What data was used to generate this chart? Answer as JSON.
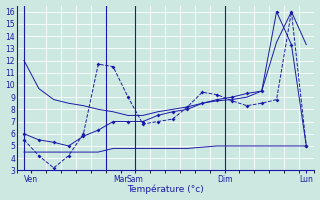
{
  "background_color": "#cce8e0",
  "grid_color": "#b0d8d0",
  "line_color": "#1a1aaa",
  "xlabel": "Température (°c)",
  "ylim": [
    3,
    16.5
  ],
  "yticks": [
    3,
    4,
    5,
    6,
    7,
    8,
    9,
    10,
    11,
    12,
    13,
    14,
    15,
    16
  ],
  "xlim": [
    0,
    19
  ],
  "vline_positions": [
    0,
    5.5,
    7.5,
    13.5
  ],
  "xtick_positions": [
    0.5,
    6.5,
    7.5,
    13.5,
    19
  ],
  "xtick_labels": [
    "Ven",
    "Mar",
    "Sam",
    "Dim",
    "Lun"
  ],
  "s1_x": [
    0,
    1,
    2,
    3,
    4,
    5,
    6,
    7,
    8,
    9,
    10,
    11,
    12,
    13,
    14,
    15,
    16,
    17,
    18,
    19
  ],
  "s1_y": [
    12.0,
    9.7,
    8.8,
    8.5,
    8.3,
    8.0,
    7.8,
    7.5,
    7.5,
    7.8,
    8.0,
    8.2,
    8.5,
    8.7,
    8.8,
    9.0,
    9.5,
    13.5,
    16.0,
    13.3
  ],
  "s2_x": [
    0,
    1,
    2,
    3,
    4,
    5,
    6,
    7,
    8,
    9,
    10,
    11,
    12,
    13,
    14,
    15,
    16,
    17,
    18,
    19
  ],
  "s2_y": [
    5.5,
    4.2,
    3.2,
    4.2,
    6.0,
    11.7,
    11.5,
    9.0,
    6.8,
    7.0,
    7.2,
    8.2,
    9.4,
    9.2,
    8.7,
    8.3,
    8.5,
    8.8,
    16.0,
    5.0
  ],
  "s3_x": [
    0,
    1,
    2,
    3,
    4,
    5,
    6,
    7,
    8,
    9,
    10,
    11,
    12,
    13,
    14,
    15,
    16,
    17,
    18,
    19
  ],
  "s3_y": [
    6.0,
    5.5,
    5.3,
    5.0,
    5.8,
    6.3,
    7.0,
    7.0,
    7.0,
    7.5,
    7.8,
    8.0,
    8.5,
    8.8,
    9.0,
    9.3,
    9.5,
    16.0,
    13.3,
    5.0
  ],
  "s4_x": [
    0,
    1,
    2,
    3,
    4,
    5,
    6,
    7,
    8,
    9,
    10,
    11,
    12,
    13,
    14,
    15,
    16,
    17,
    18,
    19
  ],
  "s4_y": [
    4.5,
    4.5,
    4.5,
    4.5,
    4.5,
    4.5,
    4.8,
    4.8,
    4.8,
    4.8,
    4.8,
    4.8,
    4.9,
    5.0,
    5.0,
    5.0,
    5.0,
    5.0,
    5.0,
    5.0
  ]
}
